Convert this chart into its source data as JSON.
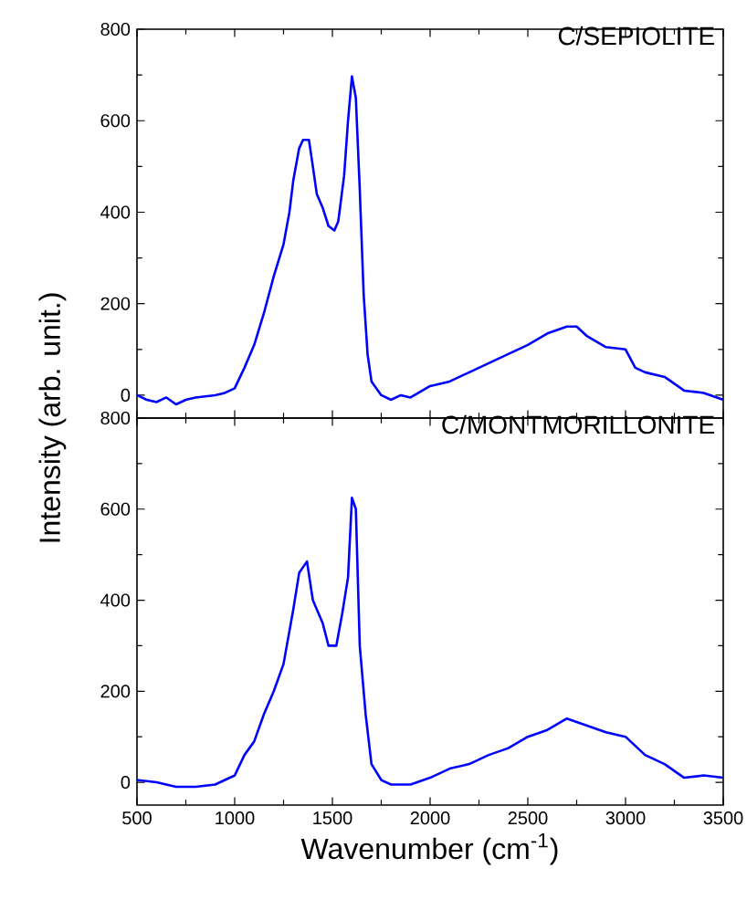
{
  "chart_data": [
    {
      "type": "line",
      "title": "C/SEPIOLITE",
      "ylabel": "Intensity (arb. unit.)",
      "xlim": [
        500,
        3500
      ],
      "ylim": [
        -50,
        800
      ],
      "xticks": [
        500,
        1000,
        1500,
        2000,
        2500,
        3000,
        3500
      ],
      "yticks": [
        0,
        200,
        400,
        600,
        800
      ],
      "tick_labels": "y",
      "x": [
        500,
        550,
        600,
        650,
        700,
        750,
        800,
        900,
        950,
        1000,
        1050,
        1100,
        1150,
        1200,
        1250,
        1280,
        1300,
        1330,
        1350,
        1380,
        1400,
        1420,
        1450,
        1480,
        1510,
        1530,
        1560,
        1580,
        1600,
        1620,
        1640,
        1660,
        1680,
        1700,
        1750,
        1800,
        1850,
        1900,
        2000,
        2100,
        2200,
        2300,
        2400,
        2500,
        2600,
        2700,
        2750,
        2800,
        2900,
        3000,
        3050,
        3100,
        3200,
        3300,
        3400,
        3500
      ],
      "series": [
        {
          "color": "#0000ff",
          "values": [
            0,
            -10,
            -15,
            -5,
            -20,
            -10,
            -5,
            0,
            5,
            15,
            60,
            110,
            180,
            260,
            330,
            400,
            470,
            540,
            558,
            558,
            500,
            440,
            410,
            370,
            360,
            380,
            480,
            600,
            697,
            650,
            450,
            220,
            90,
            30,
            0,
            -10,
            0,
            -5,
            20,
            30,
            50,
            70,
            90,
            110,
            135,
            150,
            150,
            130,
            105,
            100,
            60,
            50,
            40,
            10,
            5,
            -10
          ]
        }
      ]
    },
    {
      "type": "line",
      "title": "C/MONTMORILLONITE",
      "xlabel": "Wavenumber (cm$^{-1}$)",
      "xlim": [
        500,
        3500
      ],
      "ylim": [
        -50,
        800
      ],
      "xticks": [
        500,
        1000,
        1500,
        2000,
        2500,
        3000,
        3500
      ],
      "yticks": [
        0,
        200,
        400,
        600,
        800
      ],
      "x": [
        500,
        600,
        700,
        800,
        900,
        1000,
        1050,
        1100,
        1150,
        1200,
        1250,
        1300,
        1330,
        1370,
        1400,
        1450,
        1480,
        1520,
        1550,
        1580,
        1600,
        1620,
        1640,
        1670,
        1700,
        1750,
        1800,
        1900,
        2000,
        2100,
        2200,
        2300,
        2400,
        2500,
        2600,
        2700,
        2800,
        2900,
        3000,
        3100,
        3200,
        3300,
        3400,
        3500
      ],
      "series": [
        {
          "color": "#0000ff",
          "values": [
            5,
            0,
            -10,
            -10,
            -5,
            15,
            60,
            90,
            150,
            200,
            260,
            380,
            460,
            485,
            400,
            350,
            300,
            300,
            370,
            450,
            625,
            600,
            300,
            150,
            40,
            5,
            -5,
            -5,
            10,
            30,
            40,
            60,
            75,
            100,
            115,
            140,
            125,
            110,
            100,
            60,
            40,
            10,
            15,
            10
          ]
        }
      ]
    }
  ]
}
